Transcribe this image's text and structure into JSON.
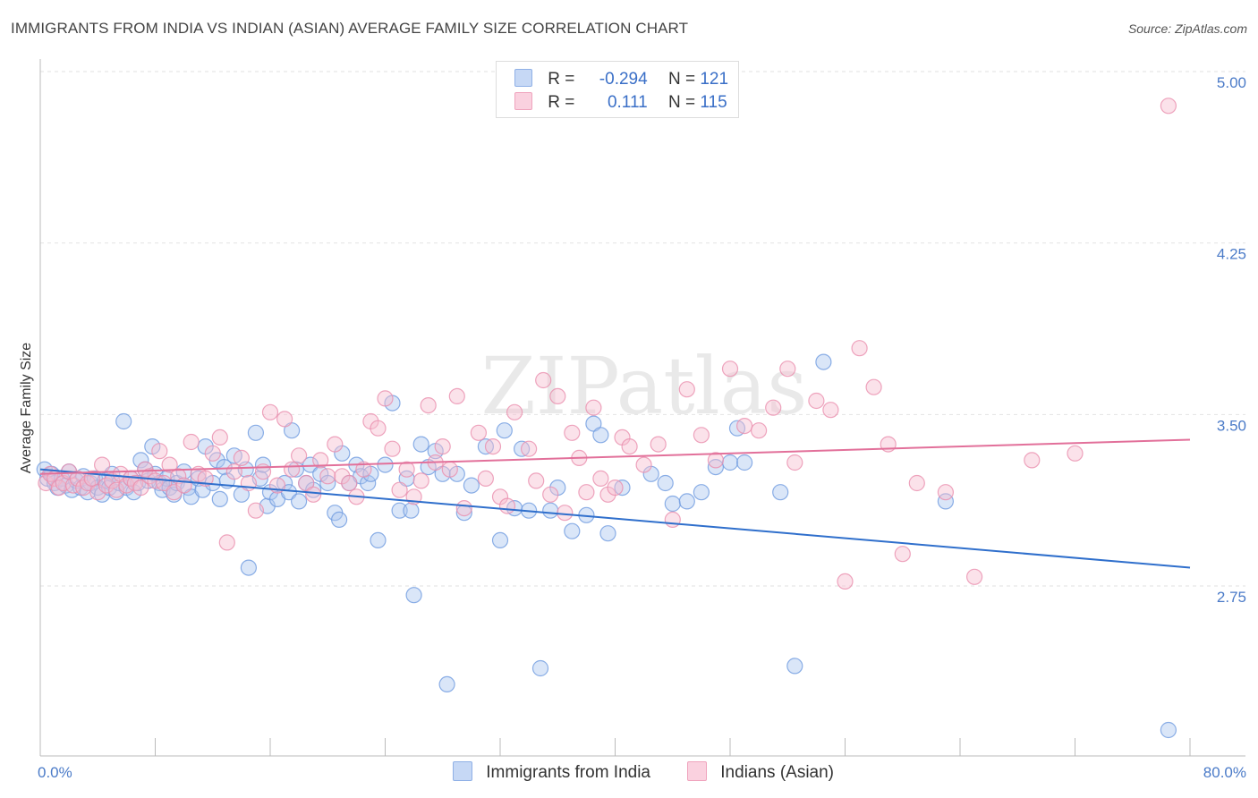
{
  "header": {
    "title": "IMMIGRANTS FROM INDIA VS INDIAN (ASIAN) AVERAGE FAMILY SIZE CORRELATION CHART",
    "source": "Source: ZipAtlas.com"
  },
  "legend": {
    "rows": [
      {
        "r_label": "R =",
        "r_value": "-0.294",
        "n_label": "N =",
        "n_value": "121",
        "color": "#aec8f0"
      },
      {
        "r_label": "R =",
        "r_value": "0.111",
        "n_label": "N =",
        "n_value": "115",
        "color": "#f6bfd1"
      }
    ]
  },
  "bottom_legend": {
    "india": "Immigrants from India",
    "asian": "Indians (Asian)"
  },
  "chart_data": {
    "type": "scatter",
    "title": "IMMIGRANTS FROM INDIA VS INDIAN (ASIAN) AVERAGE FAMILY SIZE CORRELATION CHART",
    "ylabel": "Average Family Size",
    "xlabel": "",
    "xlim": [
      0,
      80
    ],
    "ylim": [
      2.05,
      5.1
    ],
    "y_ticks": [
      2.75,
      3.5,
      4.25,
      5.0
    ],
    "y_tick_labels": [
      "2.75",
      "3.50",
      "4.25",
      "5.00"
    ],
    "x_tick_labels": [
      "0.0%",
      "80.0%"
    ],
    "grid": true,
    "watermark": "ZIPatlas",
    "series": [
      {
        "name": "Immigrants from India",
        "color": "#6f9be0",
        "fill": "#aec8f0",
        "trend": {
          "x": [
            0,
            80
          ],
          "y": [
            3.26,
            2.83
          ]
        },
        "points": [
          [
            0.3,
            3.26
          ],
          [
            0.5,
            3.22
          ],
          [
            0.8,
            3.24
          ],
          [
            1.0,
            3.2
          ],
          [
            1.2,
            3.18
          ],
          [
            1.5,
            3.22
          ],
          [
            1.8,
            3.19
          ],
          [
            2.0,
            3.25
          ],
          [
            2.2,
            3.17
          ],
          [
            2.5,
            3.21
          ],
          [
            2.8,
            3.18
          ],
          [
            3.0,
            3.23
          ],
          [
            3.3,
            3.16
          ],
          [
            3.5,
            3.2
          ],
          [
            3.8,
            3.22
          ],
          [
            4.0,
            3.18
          ],
          [
            4.3,
            3.15
          ],
          [
            4.5,
            3.21
          ],
          [
            4.8,
            3.18
          ],
          [
            5.0,
            3.24
          ],
          [
            5.3,
            3.16
          ],
          [
            5.5,
            3.2
          ],
          [
            5.8,
            3.47
          ],
          [
            6.0,
            3.18
          ],
          [
            6.3,
            3.22
          ],
          [
            6.5,
            3.16
          ],
          [
            6.8,
            3.2
          ],
          [
            7.0,
            3.3
          ],
          [
            7.3,
            3.26
          ],
          [
            7.5,
            3.21
          ],
          [
            7.8,
            3.36
          ],
          [
            8.0,
            3.24
          ],
          [
            8.3,
            3.2
          ],
          [
            8.5,
            3.17
          ],
          [
            8.8,
            3.22
          ],
          [
            9.0,
            3.18
          ],
          [
            9.3,
            3.15
          ],
          [
            9.5,
            3.2
          ],
          [
            10.0,
            3.25
          ],
          [
            10.3,
            3.18
          ],
          [
            10.5,
            3.14
          ],
          [
            11.0,
            3.22
          ],
          [
            11.3,
            3.17
          ],
          [
            11.5,
            3.36
          ],
          [
            12.0,
            3.2
          ],
          [
            12.3,
            3.3
          ],
          [
            12.5,
            3.13
          ],
          [
            12.8,
            3.27
          ],
          [
            13.0,
            3.21
          ],
          [
            13.5,
            3.32
          ],
          [
            14.0,
            3.15
          ],
          [
            14.3,
            3.26
          ],
          [
            14.5,
            2.83
          ],
          [
            15.0,
            3.42
          ],
          [
            15.3,
            3.22
          ],
          [
            15.5,
            3.28
          ],
          [
            15.8,
            3.1
          ],
          [
            16.0,
            3.16
          ],
          [
            16.5,
            3.13
          ],
          [
            17.0,
            3.2
          ],
          [
            17.3,
            3.16
          ],
          [
            17.5,
            3.43
          ],
          [
            17.8,
            3.26
          ],
          [
            18.0,
            3.12
          ],
          [
            18.5,
            3.2
          ],
          [
            18.8,
            3.28
          ],
          [
            19.0,
            3.17
          ],
          [
            19.5,
            3.24
          ],
          [
            20.0,
            3.2
          ],
          [
            20.5,
            3.07
          ],
          [
            20.8,
            3.04
          ],
          [
            21.0,
            3.33
          ],
          [
            21.5,
            3.2
          ],
          [
            22.0,
            3.28
          ],
          [
            22.3,
            3.23
          ],
          [
            22.8,
            3.2
          ],
          [
            23.0,
            3.24
          ],
          [
            23.5,
            2.95
          ],
          [
            24.0,
            3.28
          ],
          [
            24.5,
            3.55
          ],
          [
            25.0,
            3.08
          ],
          [
            25.5,
            3.22
          ],
          [
            25.8,
            3.08
          ],
          [
            26.0,
            2.71
          ],
          [
            26.5,
            3.37
          ],
          [
            27.0,
            3.27
          ],
          [
            27.5,
            3.34
          ],
          [
            28.0,
            3.24
          ],
          [
            28.3,
            2.32
          ],
          [
            29.0,
            3.24
          ],
          [
            29.5,
            3.07
          ],
          [
            30.0,
            3.19
          ],
          [
            31.0,
            3.36
          ],
          [
            32.0,
            2.95
          ],
          [
            32.3,
            3.43
          ],
          [
            33.0,
            3.09
          ],
          [
            33.5,
            3.35
          ],
          [
            34.0,
            3.08
          ],
          [
            34.8,
            2.39
          ],
          [
            35.5,
            3.08
          ],
          [
            36.0,
            3.18
          ],
          [
            37.0,
            2.99
          ],
          [
            38.0,
            3.06
          ],
          [
            38.5,
            3.46
          ],
          [
            39.0,
            3.41
          ],
          [
            39.5,
            2.98
          ],
          [
            40.5,
            3.18
          ],
          [
            42.5,
            3.24
          ],
          [
            43.5,
            3.2
          ],
          [
            44.0,
            3.11
          ],
          [
            45.0,
            3.12
          ],
          [
            46.0,
            3.16
          ],
          [
            47.0,
            3.27
          ],
          [
            48.0,
            3.29
          ],
          [
            48.5,
            3.44
          ],
          [
            49.0,
            3.29
          ],
          [
            51.5,
            3.16
          ],
          [
            52.5,
            2.4
          ],
          [
            54.5,
            3.73
          ],
          [
            63.0,
            3.12
          ],
          [
            78.5,
            2.12
          ]
        ]
      },
      {
        "name": "Indians (Asian)",
        "color": "#ea8fae",
        "fill": "#f6bfd1",
        "trend": {
          "x": [
            0,
            80
          ],
          "y": [
            3.24,
            3.39
          ]
        },
        "points": [
          [
            0.4,
            3.2
          ],
          [
            0.7,
            3.24
          ],
          [
            1.0,
            3.22
          ],
          [
            1.3,
            3.18
          ],
          [
            1.6,
            3.2
          ],
          [
            2.0,
            3.25
          ],
          [
            2.3,
            3.19
          ],
          [
            2.6,
            3.22
          ],
          [
            3.0,
            3.18
          ],
          [
            3.3,
            3.2
          ],
          [
            3.6,
            3.22
          ],
          [
            4.0,
            3.16
          ],
          [
            4.3,
            3.28
          ],
          [
            4.6,
            3.19
          ],
          [
            5.0,
            3.21
          ],
          [
            5.3,
            3.17
          ],
          [
            5.6,
            3.24
          ],
          [
            6.0,
            3.19
          ],
          [
            6.3,
            3.22
          ],
          [
            6.6,
            3.2
          ],
          [
            7.0,
            3.18
          ],
          [
            7.3,
            3.26
          ],
          [
            7.6,
            3.23
          ],
          [
            8.0,
            3.21
          ],
          [
            8.3,
            3.34
          ],
          [
            8.6,
            3.2
          ],
          [
            9.0,
            3.28
          ],
          [
            9.3,
            3.16
          ],
          [
            9.6,
            3.23
          ],
          [
            10.0,
            3.19
          ],
          [
            10.5,
            3.38
          ],
          [
            11.0,
            3.24
          ],
          [
            11.5,
            3.22
          ],
          [
            12.0,
            3.33
          ],
          [
            12.5,
            3.4
          ],
          [
            13.0,
            2.94
          ],
          [
            13.5,
            3.25
          ],
          [
            14.0,
            3.31
          ],
          [
            14.5,
            3.2
          ],
          [
            15.0,
            3.08
          ],
          [
            15.5,
            3.25
          ],
          [
            16.0,
            3.51
          ],
          [
            16.5,
            3.19
          ],
          [
            17.0,
            3.48
          ],
          [
            17.5,
            3.26
          ],
          [
            18.0,
            3.32
          ],
          [
            18.5,
            3.2
          ],
          [
            19.0,
            3.15
          ],
          [
            19.5,
            3.3
          ],
          [
            20.0,
            3.23
          ],
          [
            20.5,
            3.37
          ],
          [
            21.0,
            3.23
          ],
          [
            21.5,
            3.2
          ],
          [
            22.0,
            3.14
          ],
          [
            22.5,
            3.26
          ],
          [
            23.0,
            3.47
          ],
          [
            23.5,
            3.44
          ],
          [
            24.0,
            3.57
          ],
          [
            24.5,
            3.35
          ],
          [
            25.0,
            3.17
          ],
          [
            25.5,
            3.26
          ],
          [
            26.0,
            3.14
          ],
          [
            26.5,
            3.21
          ],
          [
            27.0,
            3.54
          ],
          [
            27.5,
            3.29
          ],
          [
            28.0,
            3.36
          ],
          [
            28.5,
            3.26
          ],
          [
            29.0,
            3.58
          ],
          [
            29.5,
            3.09
          ],
          [
            30.5,
            3.42
          ],
          [
            31.0,
            3.22
          ],
          [
            31.5,
            3.36
          ],
          [
            32.0,
            3.14
          ],
          [
            32.5,
            3.1
          ],
          [
            33.0,
            3.51
          ],
          [
            34.0,
            3.35
          ],
          [
            34.5,
            3.21
          ],
          [
            35.0,
            3.65
          ],
          [
            35.5,
            3.15
          ],
          [
            36.0,
            3.58
          ],
          [
            36.5,
            3.07
          ],
          [
            37.0,
            3.42
          ],
          [
            37.5,
            3.31
          ],
          [
            38.0,
            3.16
          ],
          [
            38.5,
            3.53
          ],
          [
            39.0,
            3.22
          ],
          [
            39.5,
            3.15
          ],
          [
            40.0,
            3.18
          ],
          [
            40.5,
            3.4
          ],
          [
            41.0,
            3.36
          ],
          [
            42.0,
            3.28
          ],
          [
            43.0,
            3.37
          ],
          [
            44.0,
            3.04
          ],
          [
            45.0,
            3.61
          ],
          [
            46.0,
            3.41
          ],
          [
            47.0,
            3.3
          ],
          [
            48.0,
            3.7
          ],
          [
            49.0,
            3.45
          ],
          [
            50.0,
            3.43
          ],
          [
            51.0,
            3.53
          ],
          [
            52.0,
            3.7
          ],
          [
            52.5,
            3.29
          ],
          [
            54.0,
            3.56
          ],
          [
            55.0,
            3.52
          ],
          [
            56.0,
            2.77
          ],
          [
            57.0,
            3.79
          ],
          [
            58.0,
            3.62
          ],
          [
            59.0,
            3.37
          ],
          [
            60.0,
            2.89
          ],
          [
            61.0,
            3.2
          ],
          [
            63.0,
            3.16
          ],
          [
            65.0,
            2.79
          ],
          [
            69.0,
            3.3
          ],
          [
            72.0,
            3.33
          ],
          [
            78.5,
            4.85
          ]
        ]
      }
    ]
  }
}
